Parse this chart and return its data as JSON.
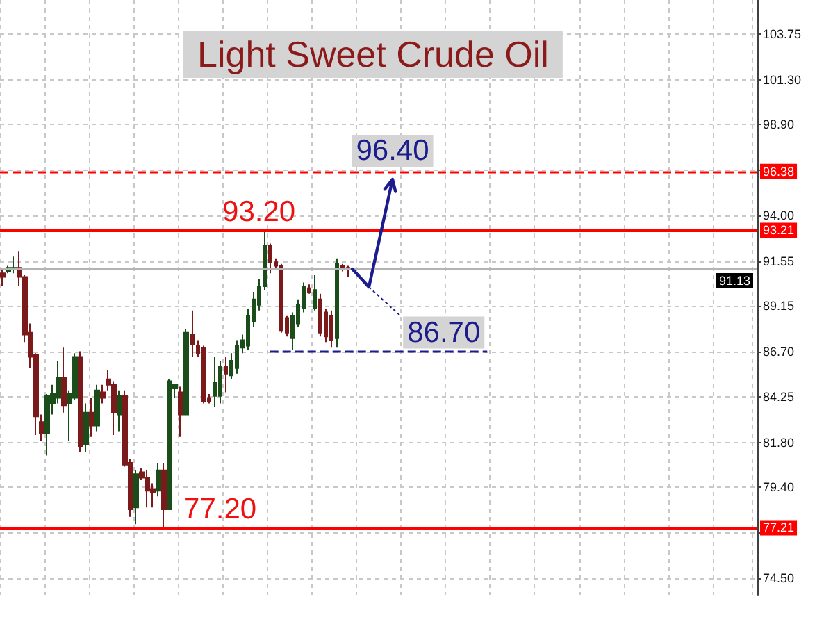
{
  "chart_data": {
    "type": "candlestick",
    "title": "Light Sweet Crude Oil",
    "categories": [
      null,
      null,
      null,
      null,
      null,
      null,
      null,
      null,
      null,
      null,
      null,
      null,
      null,
      null,
      null,
      null,
      null,
      null,
      null,
      null,
      null,
      null,
      null,
      null,
      null,
      null,
      null,
      null,
      null,
      null,
      null,
      null,
      null,
      null,
      null,
      null,
      null,
      null,
      null,
      null,
      null,
      null,
      null,
      null,
      null,
      null,
      null,
      null,
      null,
      null,
      null,
      null,
      null,
      null,
      null,
      null,
      null,
      null,
      null,
      null,
      null,
      null,
      null,
      null,
      null,
      null,
      null,
      null,
      null,
      null,
      null,
      null,
      null,
      null,
      null,
      null,
      null,
      null,
      null,
      null,
      null,
      null,
      null,
      null,
      null,
      null,
      null,
      null,
      null,
      null,
      null,
      null,
      null,
      null,
      null,
      null,
      null,
      null,
      null,
      null,
      null,
      null,
      null,
      null,
      null,
      null,
      null,
      null,
      null,
      null,
      null,
      null,
      null,
      null,
      null,
      null,
      null,
      null,
      null,
      null,
      null,
      null,
      null,
      null,
      null,
      null,
      null,
      null,
      null,
      null,
      null,
      null,
      null,
      null,
      null,
      null
    ],
    "ohlc": [
      [
        90.9,
        91.2,
        90.2,
        90.7
      ],
      [
        91.0,
        91.3,
        90.9,
        91.2
      ],
      [
        91.1,
        91.8,
        90.9,
        91.2
      ],
      [
        91.2,
        92.1,
        90.2,
        90.7
      ],
      [
        90.7,
        90.8,
        87.2,
        87.6
      ],
      [
        87.7,
        88.2,
        85.8,
        86.4
      ],
      [
        86.5,
        86.6,
        82.2,
        83.2
      ],
      [
        82.9,
        83.3,
        81.9,
        82.3
      ],
      [
        82.3,
        84.4,
        81.1,
        84.3
      ],
      [
        83.9,
        84.9,
        83.3,
        84.4
      ],
      [
        84.2,
        86.2,
        83.9,
        85.3
      ],
      [
        85.3,
        86.9,
        83.4,
        83.8
      ],
      [
        83.9,
        84.6,
        81.9,
        84.4
      ],
      [
        84.2,
        86.6,
        84.1,
        86.4
      ],
      [
        86.4,
        86.7,
        81.3,
        81.6
      ],
      [
        81.7,
        83.9,
        81.3,
        83.4
      ],
      [
        83.4,
        84.2,
        82.1,
        82.7
      ],
      [
        82.7,
        84.9,
        82.4,
        84.6
      ],
      [
        84.5,
        84.9,
        83.9,
        84.2
      ],
      [
        85.2,
        85.7,
        84.6,
        84.9
      ],
      [
        84.9,
        85.1,
        82.2,
        83.4
      ],
      [
        83.3,
        84.6,
        82.4,
        84.3
      ],
      [
        84.3,
        84.6,
        80.5,
        80.6
      ],
      [
        80.7,
        80.9,
        77.8,
        78.2
      ],
      [
        78.3,
        80.3,
        77.4,
        80.1
      ],
      [
        80.2,
        80.4,
        79.8,
        79.9
      ],
      [
        79.9,
        80.3,
        78.3,
        79.2
      ],
      [
        79.3,
        79.6,
        78.3,
        79.1
      ],
      [
        79.2,
        80.7,
        78.9,
        80.3
      ],
      [
        80.3,
        80.7,
        77.2,
        78.2
      ],
      [
        78.2,
        85.2,
        78.2,
        85.1
      ],
      [
        84.7,
        84.9,
        84.2,
        84.9
      ],
      [
        84.5,
        84.8,
        82.1,
        83.3
      ],
      [
        83.3,
        87.9,
        83.3,
        87.7
      ],
      [
        87.6,
        88.9,
        86.4,
        87.1
      ],
      [
        87.0,
        87.3,
        86.4,
        86.6
      ],
      [
        86.9,
        87.0,
        83.9,
        84.0
      ],
      [
        84.2,
        84.4,
        83.9,
        84.0
      ],
      [
        84.3,
        86.4,
        83.7,
        85.0
      ],
      [
        84.3,
        86.2,
        83.9,
        85.9
      ],
      [
        85.9,
        86.4,
        84.5,
        85.5
      ],
      [
        85.4,
        86.6,
        85.2,
        86.2
      ],
      [
        85.8,
        87.3,
        85.5,
        87.0
      ],
      [
        86.9,
        87.6,
        86.6,
        87.3
      ],
      [
        87.0,
        89.0,
        86.8,
        88.6
      ],
      [
        88.3,
        89.9,
        88.0,
        89.5
      ],
      [
        89.2,
        90.6,
        88.9,
        90.2
      ],
      [
        90.2,
        93.2,
        90.0,
        92.4
      ],
      [
        92.4,
        92.5,
        90.9,
        91.5
      ],
      [
        91.5,
        91.7,
        91.1,
        91.3
      ],
      [
        91.3,
        91.4,
        87.7,
        87.8
      ],
      [
        88.5,
        88.6,
        87.5,
        87.7
      ],
      [
        87.4,
        88.8,
        86.8,
        88.6
      ],
      [
        88.2,
        89.5,
        88.0,
        89.2
      ],
      [
        89.0,
        90.4,
        88.8,
        90.2
      ],
      [
        90.1,
        90.3,
        89.8,
        89.9
      ],
      [
        89.0,
        90.8,
        88.9,
        90.0
      ],
      [
        89.5,
        89.8,
        87.5,
        87.7
      ],
      [
        88.8,
        89.0,
        87.2,
        87.5
      ],
      [
        88.6,
        88.9,
        86.9,
        87.3
      ],
      [
        87.4,
        91.7,
        86.9,
        91.4
      ],
      [
        91.3,
        91.4,
        91.0,
        91.2
      ],
      [
        91.2,
        91.3,
        90.7,
        91.13
      ],
      null,
      null,
      null,
      null,
      null,
      null,
      null,
      null,
      null,
      null,
      null,
      null,
      null,
      null,
      null,
      null,
      null,
      null,
      null,
      null,
      null,
      null,
      null,
      null,
      null,
      null,
      null,
      null,
      null,
      null,
      null,
      null,
      null,
      null,
      null,
      null,
      null,
      null,
      null,
      null,
      null,
      null,
      null,
      null,
      null,
      null,
      null,
      null,
      null,
      null,
      null,
      null,
      null,
      null,
      null,
      null,
      null,
      null,
      null,
      null,
      null,
      null,
      null,
      null,
      null,
      null,
      null,
      null,
      null,
      null,
      null,
      null,
      null
    ],
    "colors": [
      "#7a1a1a",
      "#1a4d1a",
      "#1a4d1a",
      "#7a1a1a",
      "#7a1a1a",
      "#7a1a1a",
      "#7a1a1a",
      "#7a1a1a",
      "#1a4d1a",
      "#1a4d1a",
      "#1a4d1a",
      "#7a1a1a",
      "#1a4d1a",
      "#1a4d1a",
      "#7a1a1a",
      "#1a4d1a",
      "#7a1a1a",
      "#1a4d1a",
      "#7a1a1a",
      "#7a1a1a",
      "#7a1a1a",
      "#1a4d1a",
      "#7a1a1a",
      "#7a1a1a",
      "#1a4d1a",
      "#7a1a1a",
      "#7a1a1a",
      "#7a1a1a",
      "#1a4d1a",
      "#7a1a1a",
      "#1a4d1a",
      "#1a4d1a",
      "#7a1a1a",
      "#1a4d1a",
      "#7a1a1a",
      "#7a1a1a",
      "#7a1a1a",
      "#7a1a1a",
      "#1a4d1a",
      "#1a4d1a",
      "#7a1a1a",
      "#1a4d1a",
      "#1a4d1a",
      "#1a4d1a",
      "#1a4d1a",
      "#1a4d1a",
      "#1a4d1a",
      "#1a4d1a",
      "#7a1a1a",
      "#7a1a1a",
      "#7a1a1a",
      "#7a1a1a",
      "#1a4d1a",
      "#1a4d1a",
      "#1a4d1a",
      "#7a1a1a",
      "#1a4d1a",
      "#7a1a1a",
      "#7a1a1a",
      "#7a1a1a",
      "#1a4d1a",
      "#7a1a1a",
      "#7a1a1a",
      null,
      null,
      null,
      null,
      null,
      null,
      null,
      null,
      null,
      null,
      null,
      null,
      null,
      null,
      null,
      null,
      null,
      null,
      null,
      null,
      null,
      null,
      null,
      null,
      null,
      null,
      null,
      null,
      null,
      null,
      null,
      null,
      null,
      null,
      null,
      null,
      null,
      null,
      null,
      null,
      null,
      null,
      null,
      null,
      null,
      null,
      null,
      null,
      null,
      null,
      null,
      null,
      null,
      null,
      null,
      null,
      null,
      null,
      null,
      null,
      null,
      null,
      null,
      null,
      null,
      null,
      null,
      null,
      null,
      null,
      null,
      null,
      null
    ],
    "ylim": [
      73.6,
      105.6
    ],
    "yticks": [
      {
        "value": 74.5,
        "label": "74.50"
      },
      {
        "value": 76.95,
        "label": null
      },
      {
        "value": 79.4,
        "label": "79.40"
      },
      {
        "value": 81.8,
        "label": "81.80"
      },
      84.25,
      {
        "value": 86.7,
        "label": "86.70"
      },
      89.15,
      91.55,
      {
        "value": 94,
        "label": "94.00"
      },
      {
        "value": 96.45,
        "label": null
      },
      {
        "value": 98.9,
        "label": "98.90"
      },
      {
        "value": 101.3,
        "label": "101.30"
      },
      103.75
    ],
    "grid": true,
    "tick_labels": "y",
    "ref_lines": [
      {
        "axis": "y",
        "value": 96.38,
        "label": "96.38",
        "color": "#ff0000",
        "line_style": "dashed"
      },
      {
        "axis": "y",
        "value": 93.21,
        "label": "93.21",
        "color": "#ff0000"
      },
      {
        "axis": "y",
        "value": 91.13,
        "label": "91.13",
        "color": "#b4b4b4"
      },
      {
        "axis": "y",
        "value": 77.21,
        "label": "77.21",
        "color": "#ff0000"
      },
      {
        "axis": "y",
        "value": 86.7,
        "label": "86.70",
        "color": "#1c1c8c",
        "line_style": "dashed"
      }
    ],
    "annotations": [
      {
        "text": "96.40",
        "y": 96.4
      },
      {
        "text": "93.20",
        "y": 93.2
      },
      {
        "text": "77.20",
        "y": 77.2
      }
    ]
  }
}
